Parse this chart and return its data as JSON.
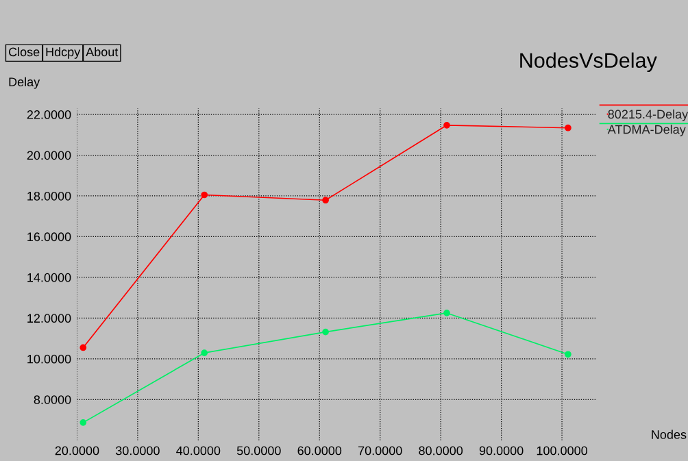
{
  "chart_data": {
    "type": "line",
    "title": "NodesVsDelay",
    "xlabel": "Nodes",
    "ylabel": "Delay",
    "annotations": [
      "Close",
      "Hdcpy",
      "About"
    ],
    "x": [
      21,
      41,
      61,
      81,
      101
    ],
    "series": [
      {
        "name": "80215.4-Delay",
        "color": "#ff0000",
        "values": [
          10.55,
          18.05,
          17.79,
          21.47,
          21.34
        ]
      },
      {
        "name": "ATDMA-Delay",
        "color": "#00ee66",
        "values": [
          6.87,
          10.29,
          11.32,
          12.25,
          10.22
        ]
      }
    ],
    "xlim": [
      20,
      105.7
    ],
    "ylim": [
      6.0,
      22.3
    ],
    "xticks": [
      {
        "value": 20,
        "label": "20.0000"
      },
      {
        "value": 30,
        "label": "30.0000"
      },
      {
        "value": 40,
        "label": "40.0000"
      },
      {
        "value": 50,
        "label": "50.0000"
      },
      {
        "value": 60,
        "label": "60.0000"
      },
      {
        "value": 70,
        "label": "70.0000"
      },
      {
        "value": 80,
        "label": "80.0000"
      },
      {
        "value": 90,
        "label": "90.0000"
      },
      {
        "value": 100,
        "label": "100.0000"
      }
    ],
    "yticks": [
      {
        "value": 8,
        "label": "8.0000"
      },
      {
        "value": 10,
        "label": "10.0000"
      },
      {
        "value": 12,
        "label": "12.0000"
      },
      {
        "value": 14,
        "label": "14.0000"
      },
      {
        "value": 16,
        "label": "16.0000"
      },
      {
        "value": 18,
        "label": "18.0000"
      },
      {
        "value": 20,
        "label": "20.0000"
      },
      {
        "value": 22,
        "label": "22.0000"
      }
    ],
    "grid": true,
    "legend": "right",
    "marker": "circle",
    "line_style": "solid"
  }
}
